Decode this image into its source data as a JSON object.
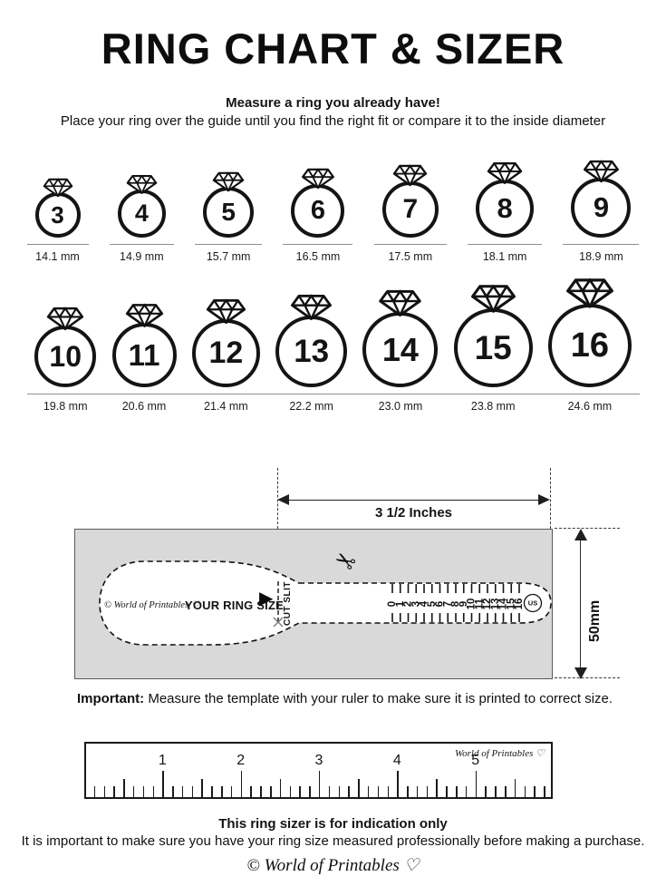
{
  "title": "RING CHART & SIZER",
  "intro": {
    "heading": "Measure a ring you already have!",
    "subheading": "Place your ring over the guide until you find the right fit or compare it to the inside diameter"
  },
  "ring_chart": {
    "rows": [
      [
        {
          "size": "3",
          "diameter": "14.1 mm"
        },
        {
          "size": "4",
          "diameter": "14.9 mm"
        },
        {
          "size": "5",
          "diameter": "15.7 mm"
        },
        {
          "size": "6",
          "diameter": "16.5 mm"
        },
        {
          "size": "7",
          "diameter": "17.5 mm"
        },
        {
          "size": "8",
          "diameter": "18.1 mm"
        },
        {
          "size": "9",
          "diameter": "18.9 mm"
        }
      ],
      [
        {
          "size": "10",
          "diameter": "19.8 mm"
        },
        {
          "size": "11",
          "diameter": "20.6 mm"
        },
        {
          "size": "12",
          "diameter": "21.4 mm"
        },
        {
          "size": "13",
          "diameter": "22.2 mm"
        },
        {
          "size": "14",
          "diameter": "23.0 mm"
        },
        {
          "size": "15",
          "diameter": "23.8 mm"
        },
        {
          "size": "16",
          "diameter": "24.6 mm"
        }
      ]
    ]
  },
  "sizer": {
    "width_label": "3 1/2 Inches",
    "height_label": "50mm",
    "brand": "© World of Printables ♡",
    "ring_size_label": "YOUR RING SIZE",
    "cut_slit_label": "CUT SLIT",
    "band_numbers": [
      "0",
      "1",
      "2",
      "3",
      "4",
      "5",
      "6",
      "7",
      "8",
      "9",
      "10",
      "11",
      "12",
      "13",
      "14",
      "15",
      "16"
    ],
    "us_label": "US"
  },
  "icons": {
    "scissors": "✂",
    "pointer": "▶"
  },
  "important": {
    "label": "Important:",
    "text": " Measure the template with your ruler to make sure it is printed to correct size."
  },
  "ruler": {
    "numbers": [
      "1",
      "2",
      "3",
      "4",
      "5"
    ],
    "brand": "World of Printables ♡"
  },
  "footer": {
    "heading": "This ring sizer is for indication only",
    "text": "It is important to make sure you have your ring size measured professionally before making a purchase.",
    "brand": "© World of Printables ♡"
  },
  "colors": {
    "ink": "#141414",
    "template_fill": "#d9d9d9"
  }
}
